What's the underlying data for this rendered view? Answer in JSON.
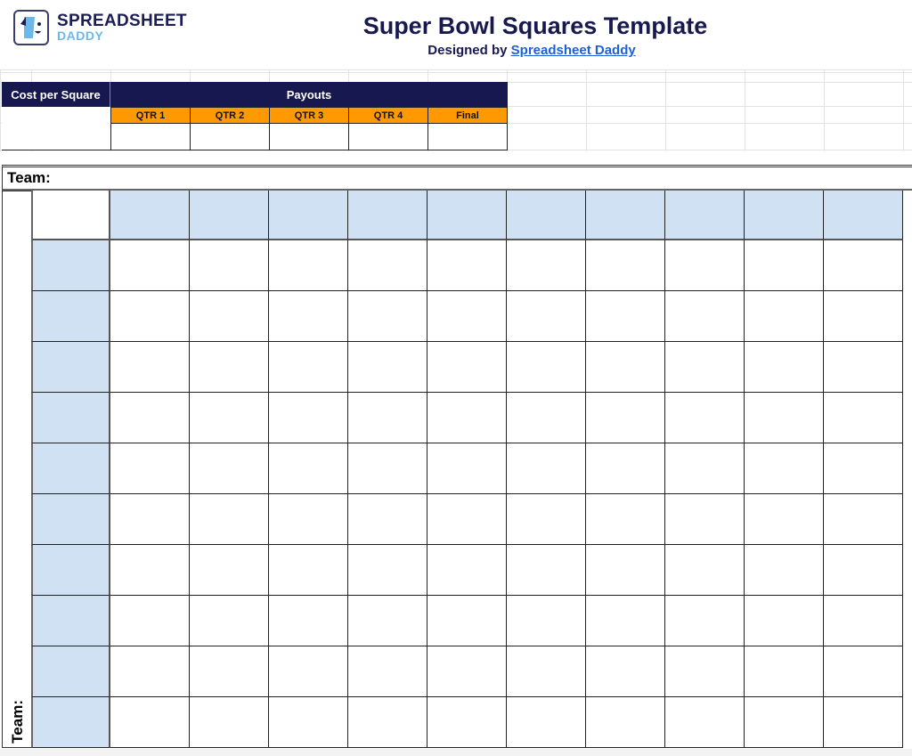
{
  "logo": {
    "line1": "SPREADSHEET",
    "line2": "DADDY"
  },
  "title": "Super Bowl Squares Template",
  "subtitle": {
    "prefix": "Designed by ",
    "link": "Spreadsheet Daddy"
  },
  "payouts_table": {
    "cost_label": "Cost per Square",
    "payouts_label": "Payouts",
    "columns": [
      "QTR 1",
      "QTR 2",
      "QTR 3",
      "QTR 4",
      "Final"
    ]
  },
  "grid": {
    "top_team_label": "Team:",
    "side_team_label": "Team:",
    "columns": 10,
    "rows": 10
  },
  "colors": {
    "navy": "#171850",
    "orange": "#ff9900",
    "light_blue": "#d0e1f3",
    "link": "#1f5fd6"
  }
}
